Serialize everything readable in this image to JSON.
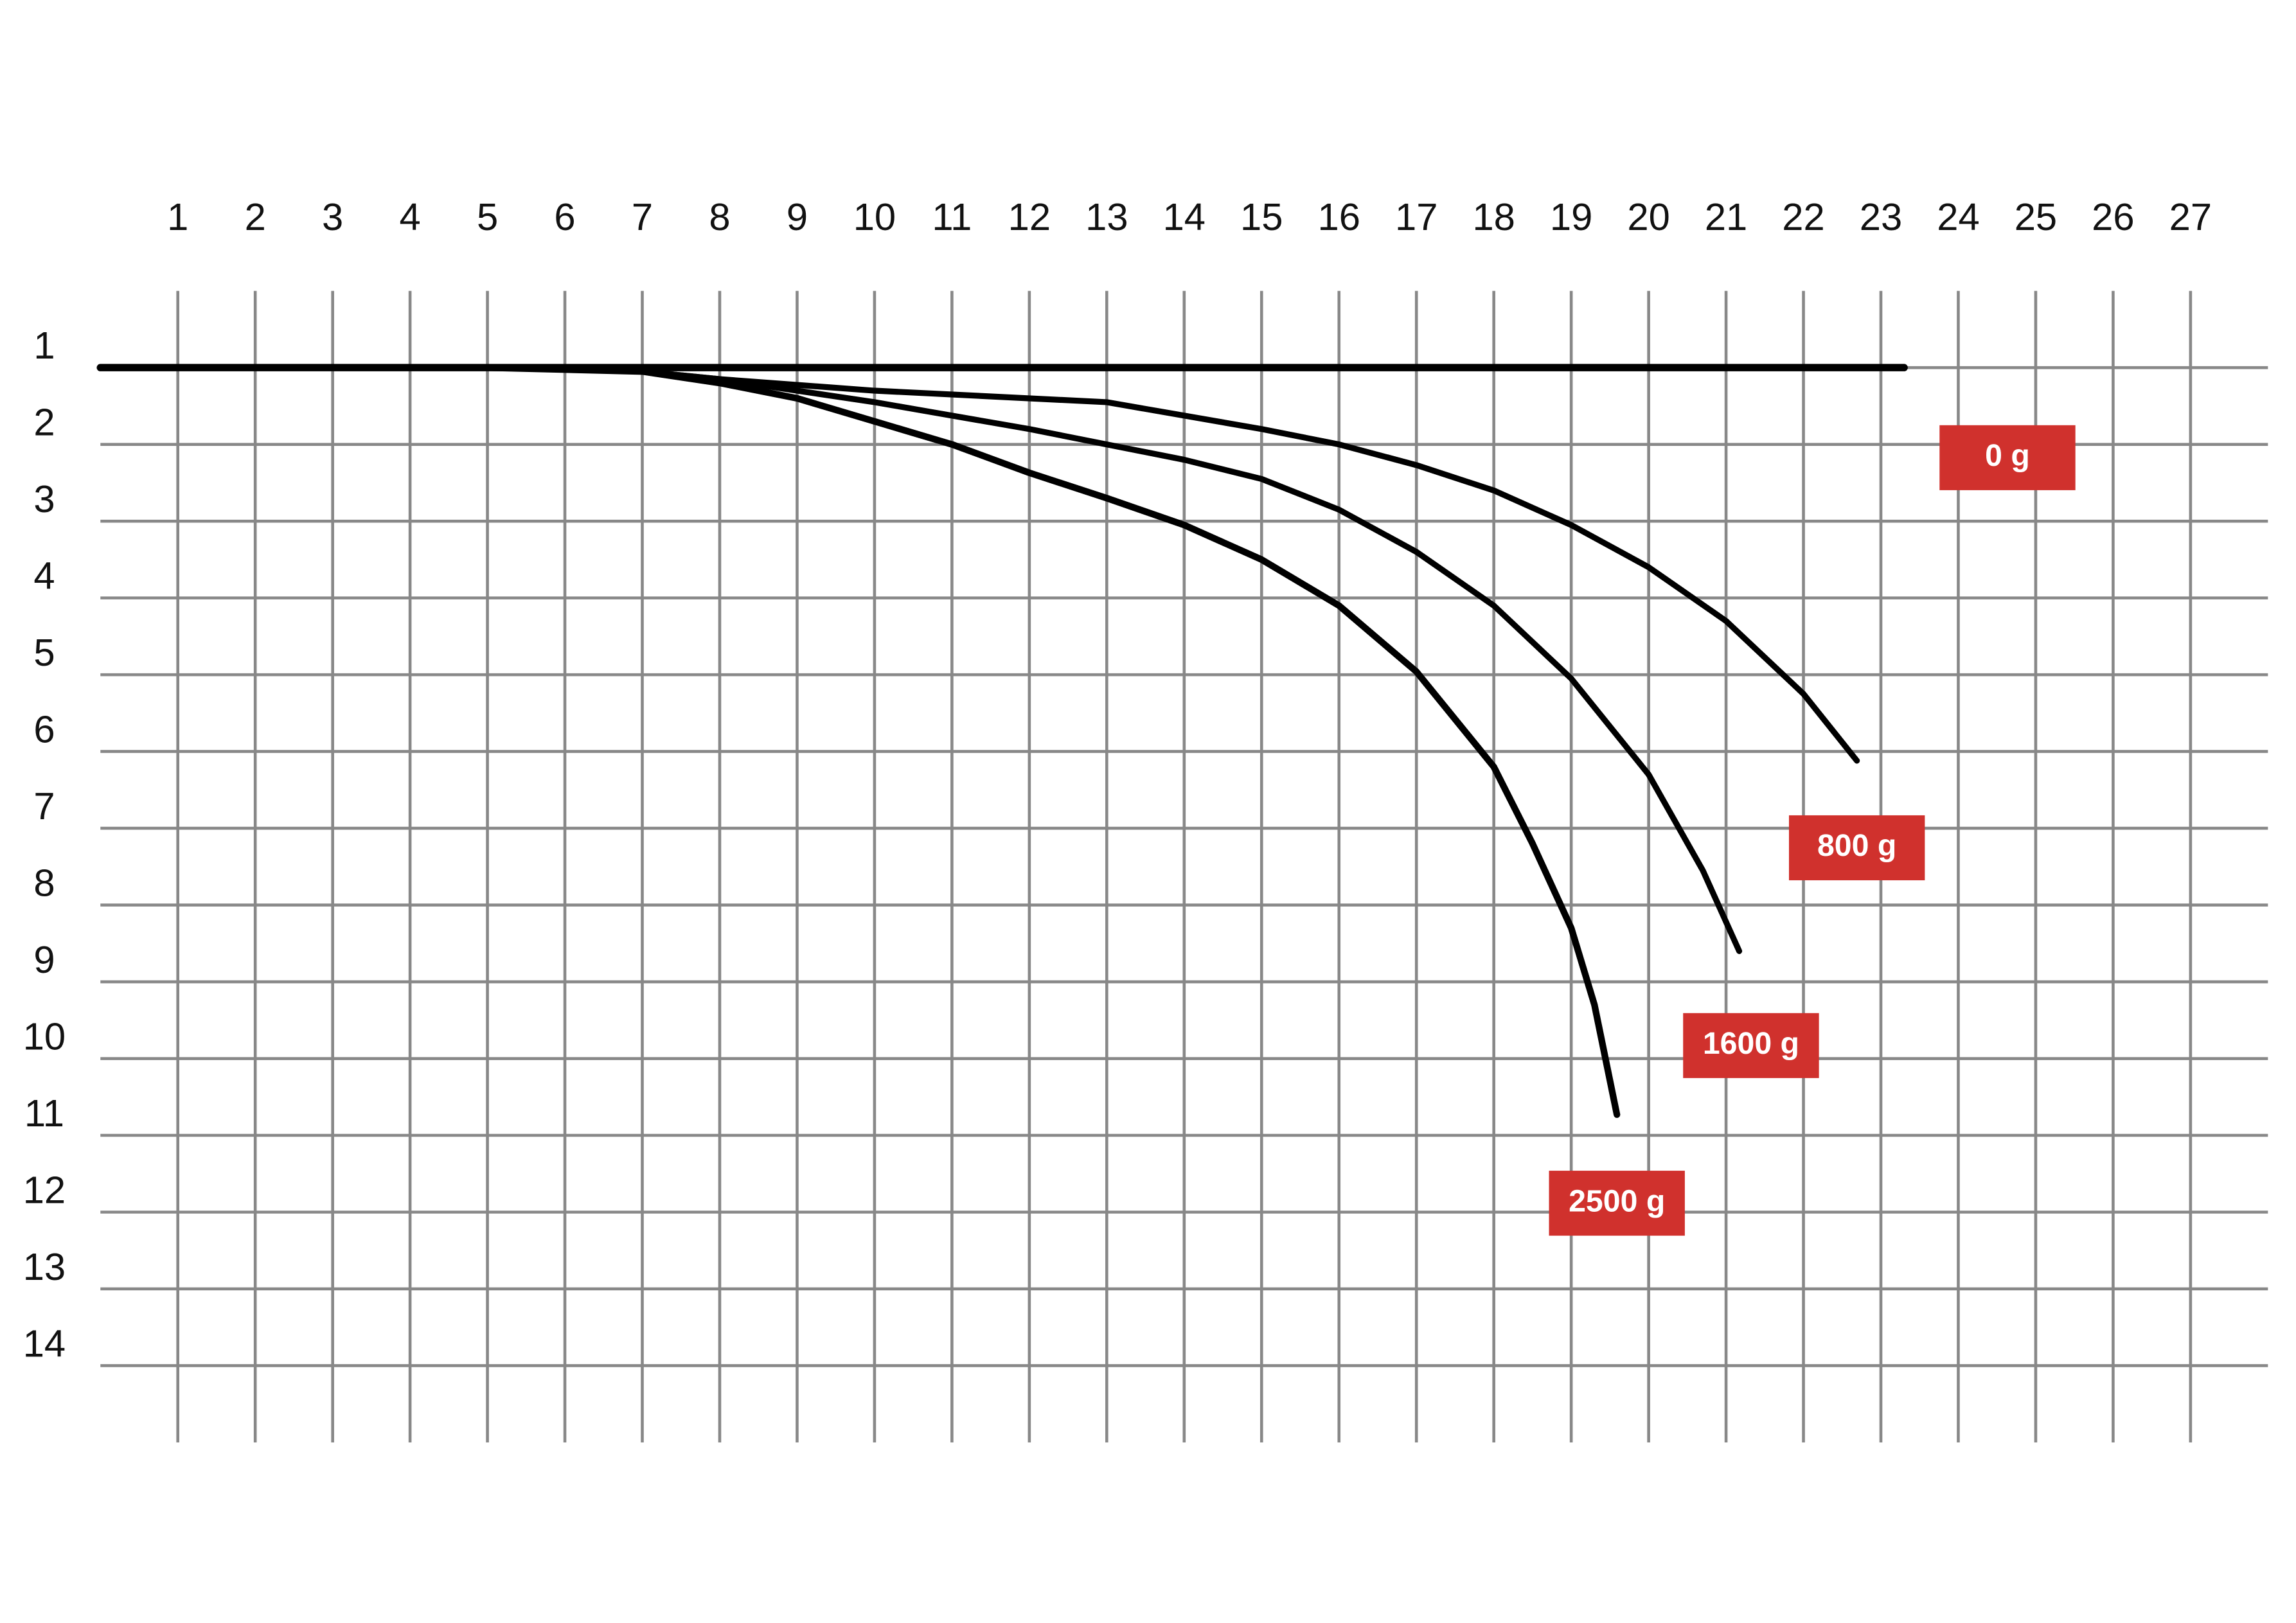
{
  "chart_data": {
    "type": "line",
    "inverted_y": true,
    "grid": true,
    "grid_color": "#888888",
    "label_color": "#d0312d",
    "xlim": [
      0,
      28
    ],
    "ylim": [
      0,
      15
    ],
    "xticks": [
      1,
      2,
      3,
      4,
      5,
      6,
      7,
      8,
      9,
      10,
      11,
      12,
      13,
      14,
      15,
      16,
      17,
      18,
      19,
      20,
      21,
      22,
      23,
      24,
      25,
      26,
      27
    ],
    "yticks": [
      1,
      2,
      3,
      4,
      5,
      6,
      7,
      8,
      9,
      10,
      11,
      12,
      13,
      14
    ],
    "series": [
      {
        "name": "0 g",
        "color": "#000000",
        "x": [
          0,
          5,
          10,
          15,
          20,
          23.3
        ],
        "values": [
          1.0,
          1.0,
          1.0,
          1.0,
          1.0,
          1.0
        ]
      },
      {
        "name": "800 g",
        "color": "#000000",
        "x": [
          0,
          5,
          7,
          8,
          10,
          13,
          15,
          16,
          17,
          18,
          19,
          20,
          21,
          22,
          22.69
        ],
        "values": [
          1.0,
          1.0,
          1.05,
          1.15,
          1.3,
          1.45,
          1.8,
          2.0,
          2.27,
          2.6,
          3.05,
          3.6,
          4.3,
          5.25,
          6.12
        ]
      },
      {
        "name": "1600 g",
        "color": "#000000",
        "x": [
          0,
          5,
          7,
          8,
          10,
          12,
          14,
          15,
          16,
          17,
          18,
          19,
          20,
          20.7,
          21.17
        ],
        "values": [
          1.0,
          1.0,
          1.05,
          1.15,
          1.45,
          1.8,
          2.2,
          2.45,
          2.85,
          3.4,
          4.1,
          5.05,
          6.3,
          7.55,
          8.6
        ]
      },
      {
        "name": "2500 g",
        "color": "#000000",
        "x": [
          0,
          5,
          7,
          8,
          9,
          10,
          11,
          12,
          13,
          14,
          15,
          16,
          17,
          18,
          18.5,
          19,
          19.3,
          19.59
        ],
        "values": [
          1.0,
          1.0,
          1.05,
          1.2,
          1.4,
          1.7,
          2.0,
          2.37,
          2.7,
          3.05,
          3.5,
          4.1,
          4.96,
          6.2,
          7.2,
          8.3,
          9.3,
          10.73
        ]
      }
    ]
  }
}
